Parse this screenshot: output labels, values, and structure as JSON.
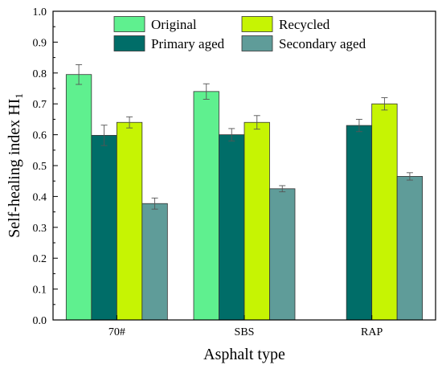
{
  "chart_data": {
    "type": "bar",
    "categories": [
      "70#",
      "SBS",
      "RAP"
    ],
    "series": [
      {
        "name": "Original",
        "color": "#5ff08f",
        "values": [
          0.795,
          0.74,
          null
        ],
        "errors": [
          0.032,
          0.025,
          null
        ]
      },
      {
        "name": "Primary aged",
        "color": "#006d68",
        "values": [
          0.598,
          0.6,
          0.63
        ],
        "errors": [
          0.033,
          0.02,
          0.02
        ]
      },
      {
        "name": "Recycled",
        "color": "#c6f403",
        "values": [
          0.64,
          0.64,
          0.7
        ],
        "errors": [
          0.018,
          0.022,
          0.02
        ]
      },
      {
        "name": "Secondary aged",
        "color": "#5f9c99",
        "values": [
          0.377,
          0.425,
          0.465
        ],
        "errors": [
          0.018,
          0.01,
          0.012
        ]
      }
    ],
    "xlabel": "Asphalt type",
    "ylabel_main": "Self-healing index HI",
    "ylabel_sub": "1",
    "ylim": [
      0.0,
      1.0
    ],
    "yticks": [
      "0.0",
      "0.1",
      "0.2",
      "0.3",
      "0.4",
      "0.5",
      "0.6",
      "0.7",
      "0.8",
      "0.9",
      "1.0"
    ],
    "legend_placement": "top",
    "grid": false
  }
}
